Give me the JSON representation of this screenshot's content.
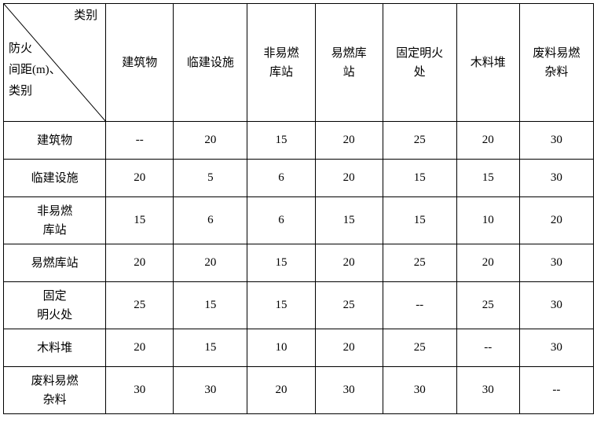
{
  "type": "table",
  "style": {
    "border_color": "#000000",
    "background_color": "#ffffff",
    "text_color": "#000000",
    "font_family": "SimSun",
    "font_size_pt": 11
  },
  "corner": {
    "top_label": "类别",
    "left_line1": "防火",
    "left_line2": "间距(m)、",
    "left_line3": "类别"
  },
  "columns": [
    {
      "key": "build",
      "label": "建筑物"
    },
    {
      "key": "temp",
      "label": "临建设施"
    },
    {
      "key": "nf",
      "label": "非易燃\n库站"
    },
    {
      "key": "fl",
      "label": "易燃库\n站"
    },
    {
      "key": "fire",
      "label": "固定明火\n处"
    },
    {
      "key": "wood",
      "label": "木料堆"
    },
    {
      "key": "waste",
      "label": "废料易燃\n杂料"
    }
  ],
  "rows": [
    {
      "label": "建筑物",
      "tall": false,
      "cells": [
        "--",
        "20",
        "15",
        "20",
        "25",
        "20",
        "30"
      ]
    },
    {
      "label": "临建设施",
      "tall": false,
      "cells": [
        "20",
        "5",
        "6",
        "20",
        "15",
        "15",
        "30"
      ]
    },
    {
      "label": "非易燃\n库站",
      "tall": true,
      "cells": [
        "15",
        "6",
        "6",
        "15",
        "15",
        "10",
        "20"
      ]
    },
    {
      "label": "易燃库站",
      "tall": false,
      "cells": [
        "20",
        "20",
        "15",
        "20",
        "25",
        "20",
        "30"
      ]
    },
    {
      "label": "固定\n明火处",
      "tall": true,
      "cells": [
        "25",
        "15",
        "15",
        "25",
        "--",
        "25",
        "30"
      ]
    },
    {
      "label": "木料堆",
      "tall": false,
      "cells": [
        "20",
        "15",
        "10",
        "20",
        "25",
        "--",
        "30"
      ]
    },
    {
      "label": "废料易燃\n杂料",
      "tall": true,
      "cells": [
        "30",
        "30",
        "20",
        "30",
        "30",
        "30",
        "--"
      ]
    }
  ]
}
